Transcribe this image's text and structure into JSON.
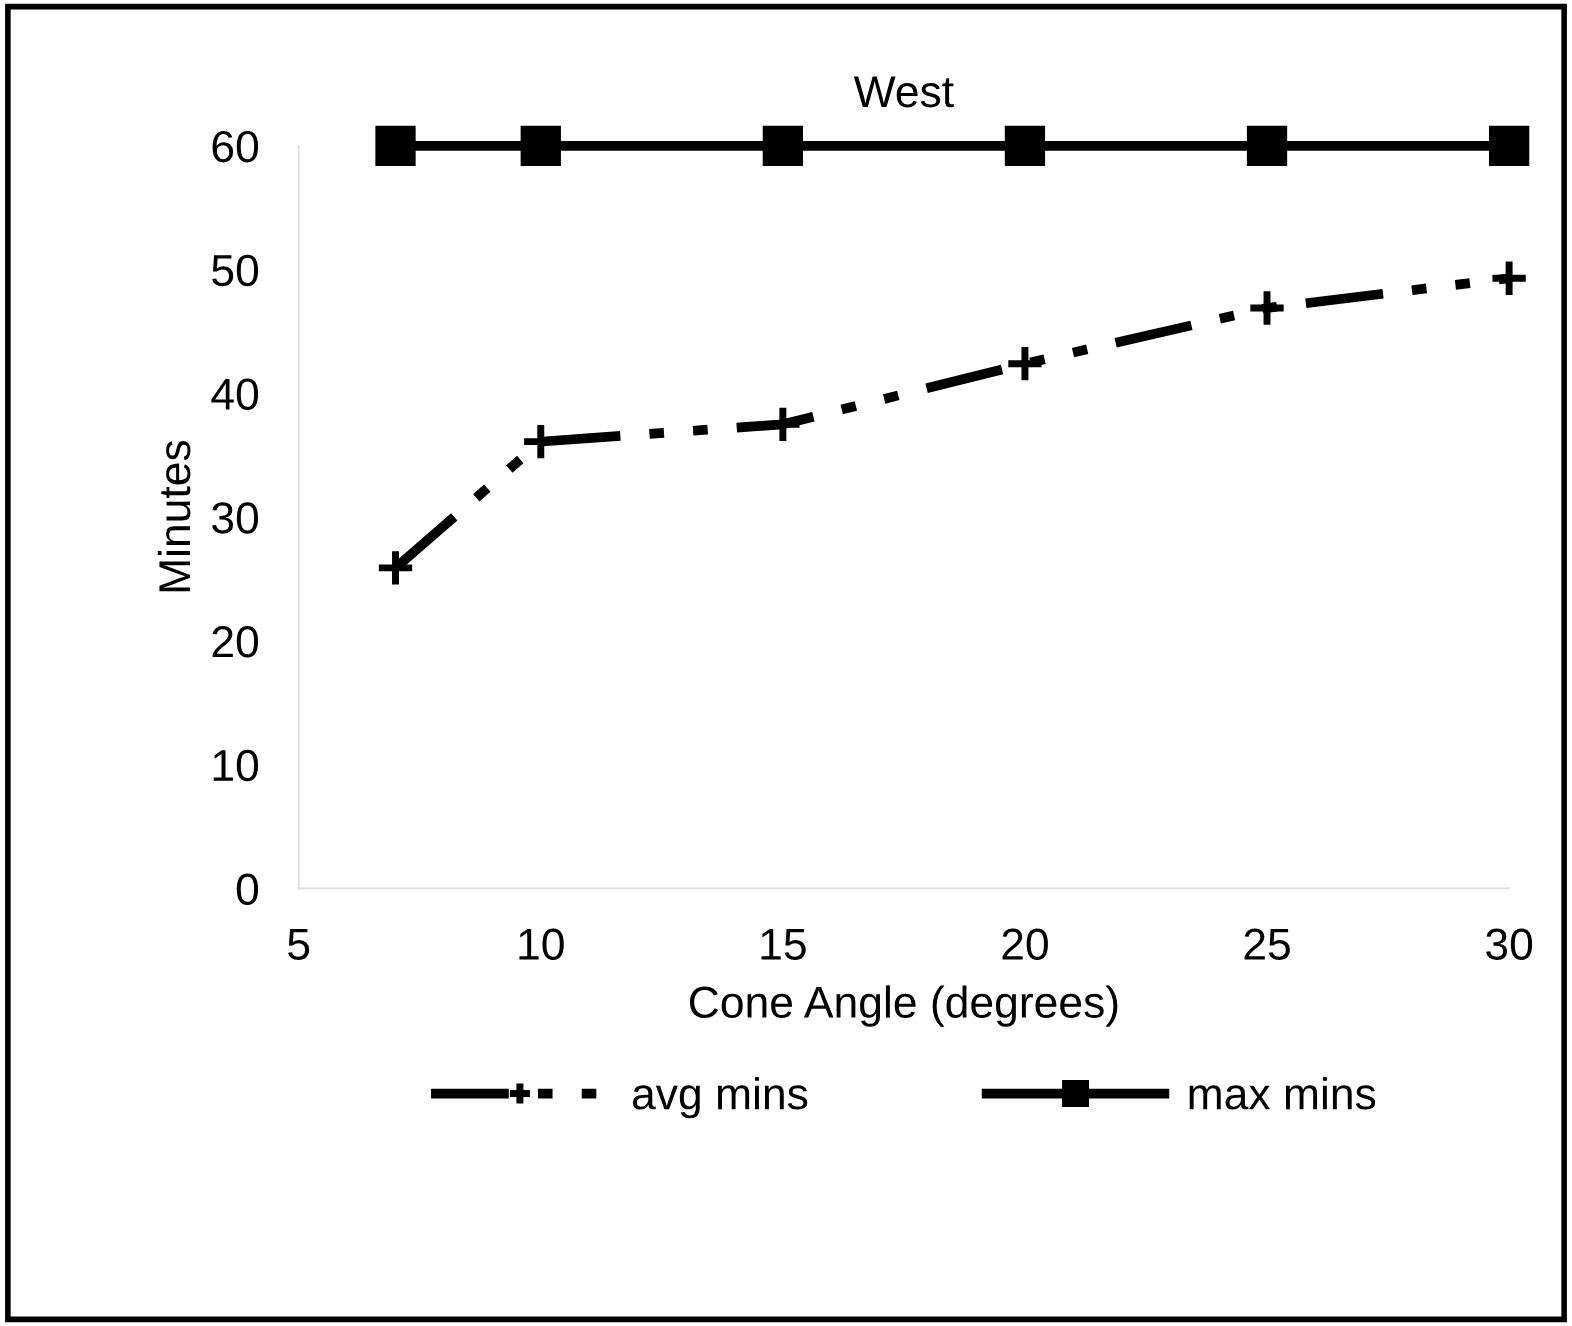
{
  "chart_data": {
    "type": "line",
    "title": "West",
    "xlabel": "Cone Angle (degrees)",
    "ylabel": "Minutes",
    "x": [
      7,
      10,
      15,
      20,
      25,
      30
    ],
    "series": [
      {
        "name": "avg mins",
        "color": "#000000",
        "values": [
          25.9,
          36.1,
          37.5,
          42.4,
          46.9,
          49.3
        ],
        "marker": "cross",
        "line_style": "dashed"
      },
      {
        "name": "max mins",
        "color": "#000000",
        "values": [
          60,
          60,
          60,
          60,
          60,
          60
        ],
        "marker": "square",
        "line_style": "solid"
      }
    ],
    "xlim": [
      5,
      30
    ],
    "xticks": [
      5,
      10,
      15,
      20,
      25,
      30
    ],
    "ylim": [
      0,
      60
    ],
    "yticks": [
      0,
      10,
      20,
      30,
      40,
      50,
      60
    ],
    "grid": false,
    "legend": "bottom"
  }
}
